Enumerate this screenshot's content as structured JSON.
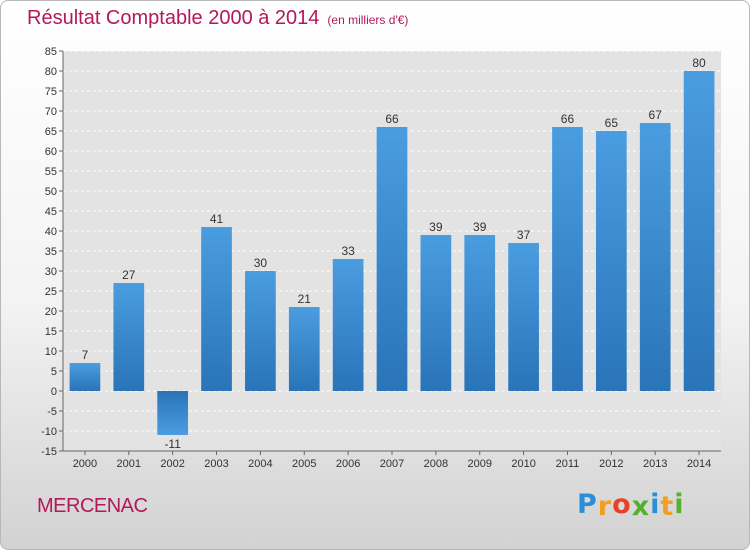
{
  "header": {
    "title": "Résultat Comptable 2000 à 2014",
    "subtitle": "(en milliers d'€)"
  },
  "footer": {
    "location": "MERCENAC",
    "logo_letters": [
      "P",
      "r",
      "o",
      "x",
      "i",
      "t",
      "i"
    ],
    "logo_colors": [
      "#2a8fd6",
      "#f0a020",
      "#e8402a",
      "#55b030",
      "#2a8fd6",
      "#f0a020",
      "#55b030"
    ]
  },
  "chart_data": {
    "type": "bar",
    "categories": [
      "2000",
      "2001",
      "2002",
      "2003",
      "2004",
      "2005",
      "2006",
      "2007",
      "2008",
      "2009",
      "2010",
      "2011",
      "2012",
      "2013",
      "2014"
    ],
    "values": [
      7,
      27,
      -11,
      41,
      30,
      21,
      33,
      66,
      39,
      39,
      37,
      66,
      65,
      67,
      80
    ],
    "ylim": [
      -15,
      85
    ],
    "ytick_step": 5,
    "grid": true,
    "bar_color": "#4a9de0",
    "bar_color_dark": "#2a74b8",
    "plot_background": "#e3e3e3"
  }
}
